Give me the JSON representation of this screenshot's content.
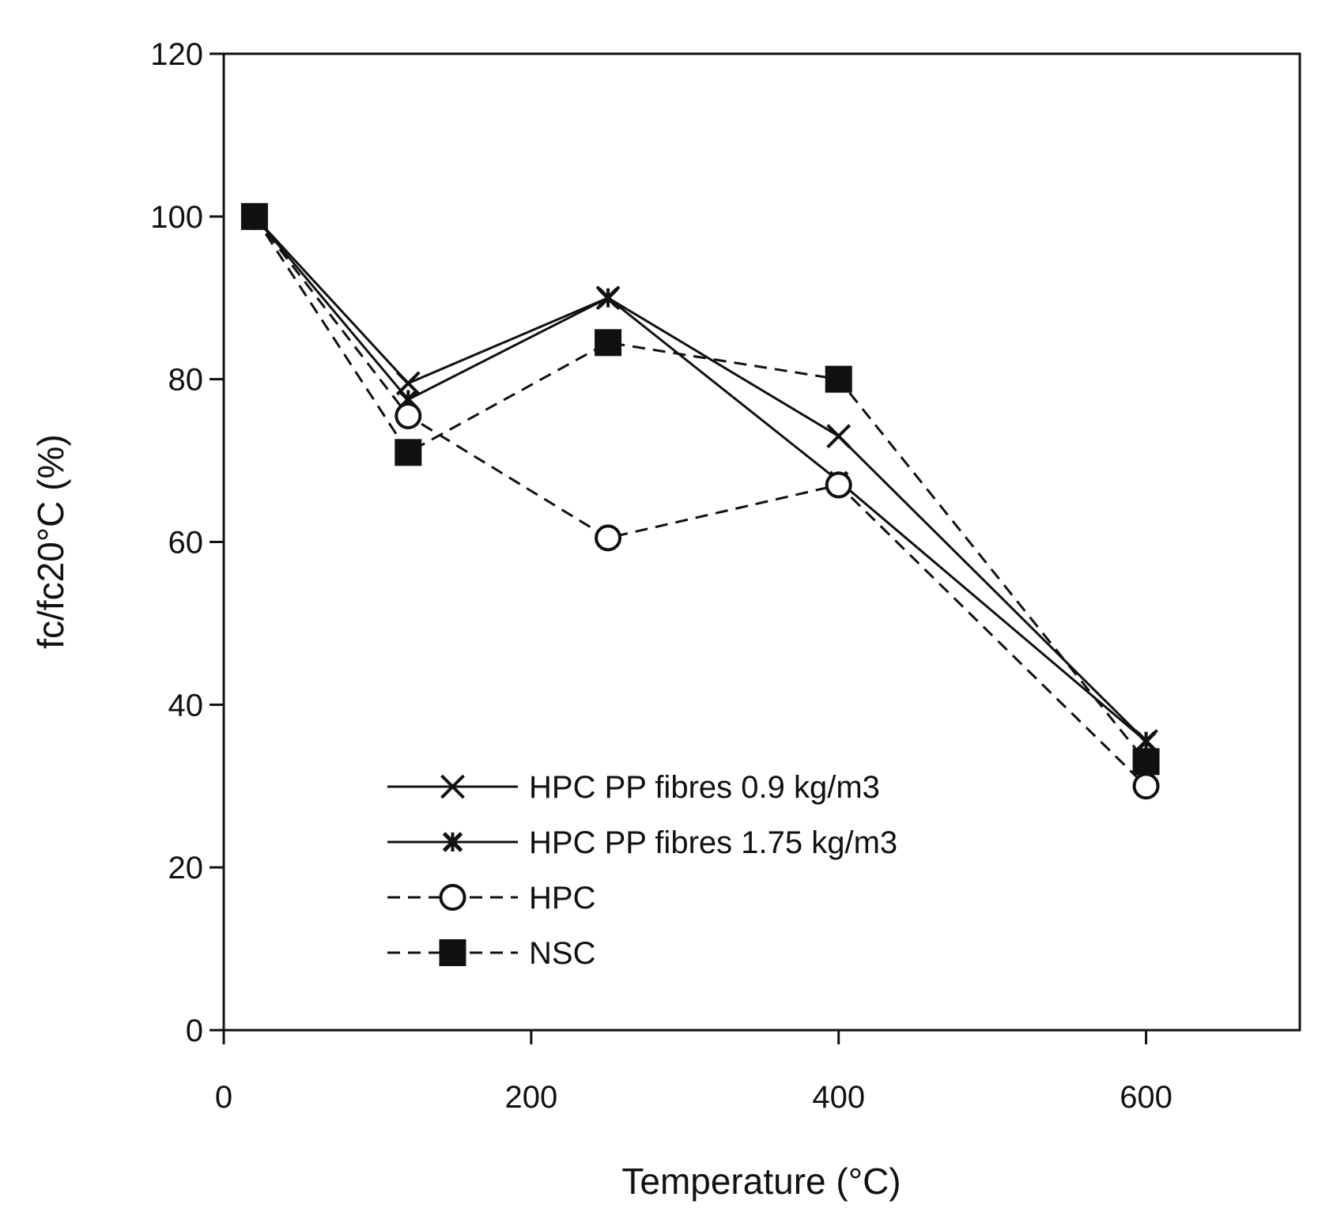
{
  "chart_data": {
    "type": "line",
    "title": "",
    "xlabel": "Temperature (°C)",
    "ylabel": "fc/fc20°C (%)",
    "xlim": [
      0,
      700
    ],
    "ylim": [
      0,
      120
    ],
    "xticks": [
      0,
      200,
      400,
      600
    ],
    "yticks": [
      0,
      20,
      40,
      60,
      80,
      100,
      120
    ],
    "grid": false,
    "legend_position": "bottom-center",
    "series": [
      {
        "name": "HPC PP fibres 0.9 kg/m3",
        "marker": "x",
        "dash": "solid",
        "x": [
          20,
          120,
          250,
          400,
          600
        ],
        "y": [
          100,
          79.5,
          90,
          73,
          35.5
        ]
      },
      {
        "name": "HPC PP fibres 1.75 kg/m3",
        "marker": "star",
        "dash": "solid",
        "x": [
          20,
          120,
          250,
          400,
          600
        ],
        "y": [
          100,
          77.5,
          90,
          67.5,
          35.5
        ]
      },
      {
        "name": "HPC",
        "marker": "circle",
        "dash": "dashed",
        "x": [
          20,
          120,
          250,
          400,
          600
        ],
        "y": [
          100,
          75.5,
          60.5,
          67,
          30
        ]
      },
      {
        "name": "NSC",
        "marker": "square",
        "dash": "dashed",
        "x": [
          20,
          120,
          250,
          400,
          600
        ],
        "y": [
          100,
          71,
          84.5,
          80,
          33
        ]
      }
    ]
  }
}
